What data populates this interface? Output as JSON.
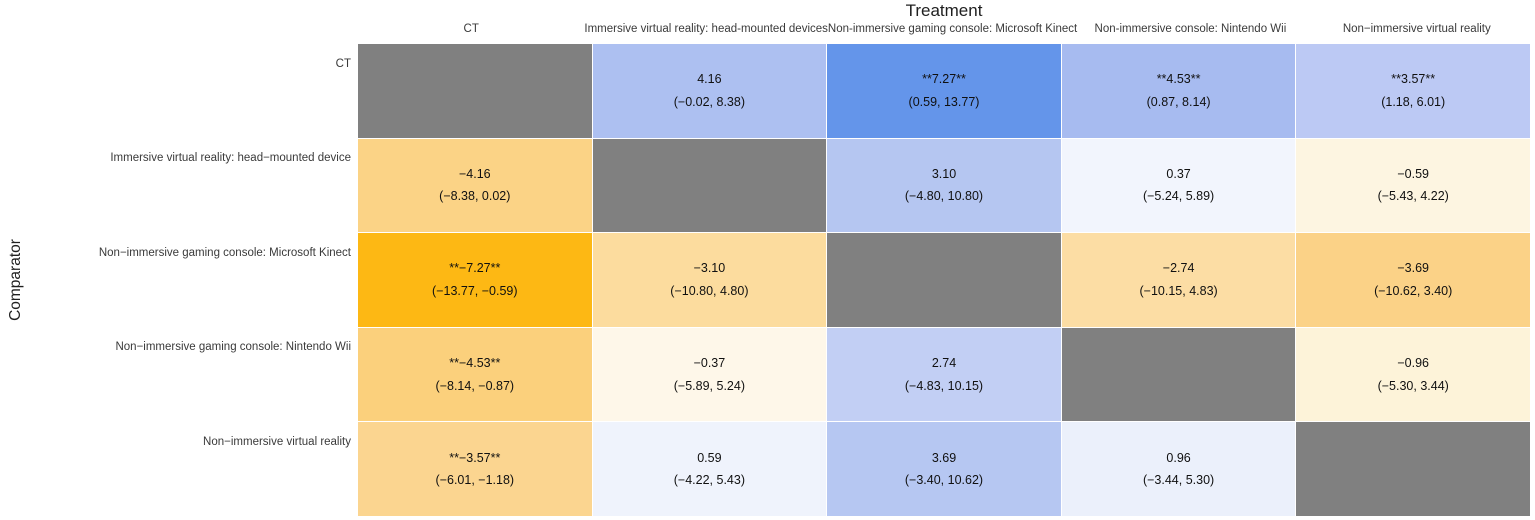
{
  "chart_data": {
    "type": "heatmap",
    "title": "Treatment",
    "ylabel": "Comparator",
    "legend_position": "none",
    "colors": {
      "diagonal": "#808080",
      "strong_blue": "#6495ea",
      "strong_orange": "#fdb814",
      "background": "#ffffff"
    },
    "columns": [
      "CT",
      "Immersive virtual reality: head-mounted devices",
      "Non-immersive gaming console: Microsoft Kinect",
      "Non-immersive console: Nintendo Wii",
      "Non−immersive virtual reality"
    ],
    "rows": [
      "CT",
      "Immersive virtual reality: head−mounted device",
      "Non−immersive gaming console: Microsoft Kinect",
      "Non−immersive gaming console: Nintendo Wii",
      "Non−immersive virtual reality"
    ],
    "cells": [
      [
        {
          "estimate": "",
          "ci": "",
          "color": "#808080"
        },
        {
          "estimate": "4.16",
          "ci": "(−0.02, 8.38)",
          "color": "#adc0f1"
        },
        {
          "estimate": "**7.27**",
          "ci": "(0.59, 13.77)",
          "color": "#6495ea"
        },
        {
          "estimate": "**4.53**",
          "ci": "(0.87, 8.14)",
          "color": "#a7bbf0"
        },
        {
          "estimate": "**3.57**",
          "ci": "(1.18, 6.01)",
          "color": "#bcc9f4"
        }
      ],
      [
        {
          "estimate": "−4.16",
          "ci": "(−8.38, 0.02)",
          "color": "#fbd386"
        },
        {
          "estimate": "",
          "ci": "",
          "color": "#808080"
        },
        {
          "estimate": "3.10",
          "ci": "(−4.80, 10.80)",
          "color": "#b5c6f1"
        },
        {
          "estimate": "0.37",
          "ci": "(−5.24, 5.89)",
          "color": "#f2f5fd"
        },
        {
          "estimate": "−0.59",
          "ci": "(−5.43, 4.22)",
          "color": "#fdf5e1"
        }
      ],
      [
        {
          "estimate": "**−7.27**",
          "ci": "(−13.77, −0.59)",
          "color": "#fdb814"
        },
        {
          "estimate": "−3.10",
          "ci": "(−10.80, 4.80)",
          "color": "#fcdc9e"
        },
        {
          "estimate": "",
          "ci": "",
          "color": "#808080"
        },
        {
          "estimate": "−2.74",
          "ci": "(−10.15, 4.83)",
          "color": "#fcdda4"
        },
        {
          "estimate": "−3.69",
          "ci": "(−10.62, 3.40)",
          "color": "#fbd287"
        }
      ],
      [
        {
          "estimate": "**−4.53**",
          "ci": "(−8.14, −0.87)",
          "color": "#fbd07c"
        },
        {
          "estimate": "−0.37",
          "ci": "(−5.89, 5.24)",
          "color": "#fef7e9"
        },
        {
          "estimate": "2.74",
          "ci": "(−4.83, 10.15)",
          "color": "#c2cff4"
        },
        {
          "estimate": "",
          "ci": "",
          "color": "#808080"
        },
        {
          "estimate": "−0.96",
          "ci": "(−5.30, 3.44)",
          "color": "#fdf3d9"
        }
      ],
      [
        {
          "estimate": "**−3.57**",
          "ci": "(−6.01, −1.18)",
          "color": "#fbd590"
        },
        {
          "estimate": "0.59",
          "ci": "(−4.22, 5.43)",
          "color": "#eff3fc"
        },
        {
          "estimate": "3.69",
          "ci": "(−3.40, 10.62)",
          "color": "#b6c7f2"
        },
        {
          "estimate": "0.96",
          "ci": "(−3.44, 5.30)",
          "color": "#ebf0fb"
        },
        {
          "estimate": "",
          "ci": "",
          "color": "#808080"
        }
      ]
    ]
  }
}
